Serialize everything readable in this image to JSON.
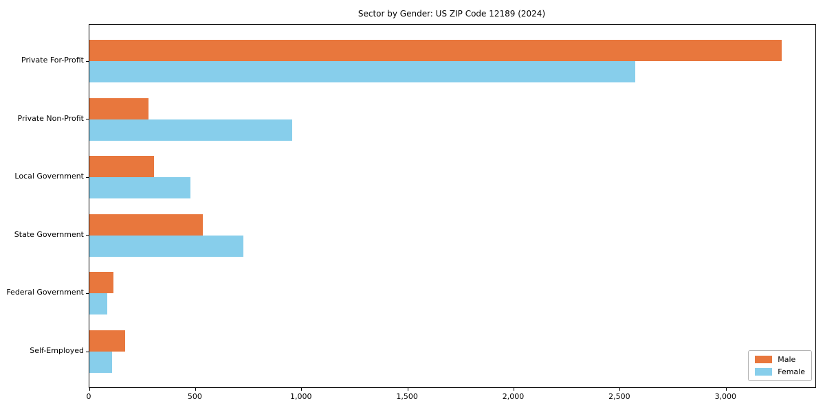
{
  "chart_data": {
    "type": "bar",
    "orientation": "horizontal",
    "title": "Sector by Gender: US ZIP Code 12189 (2024)",
    "categories": [
      "Private For-Profit",
      "Private Non-Profit",
      "Local Government",
      "State Government",
      "Federal Government",
      "Self-Employed"
    ],
    "series": [
      {
        "name": "Male",
        "color": "#e8773d",
        "values": [
          3260,
          280,
          303,
          535,
          112,
          170
        ]
      },
      {
        "name": "Female",
        "color": "#87ceeb",
        "values": [
          2570,
          954,
          475,
          725,
          84,
          107
        ]
      }
    ],
    "xlabel": "",
    "ylabel": "",
    "xlim": [
      0,
      3420
    ],
    "xticks": {
      "values": [
        0,
        500,
        1000,
        1500,
        2000,
        2500,
        3000
      ],
      "labels": [
        "0",
        "500",
        "1,000",
        "1,500",
        "2,000",
        "2,500",
        "3,000"
      ]
    },
    "grid": false,
    "legend": {
      "position": "lower right"
    },
    "colors": {
      "spine": "#000000",
      "text": "#000000",
      "legend_border": "#b3b3b3"
    }
  }
}
